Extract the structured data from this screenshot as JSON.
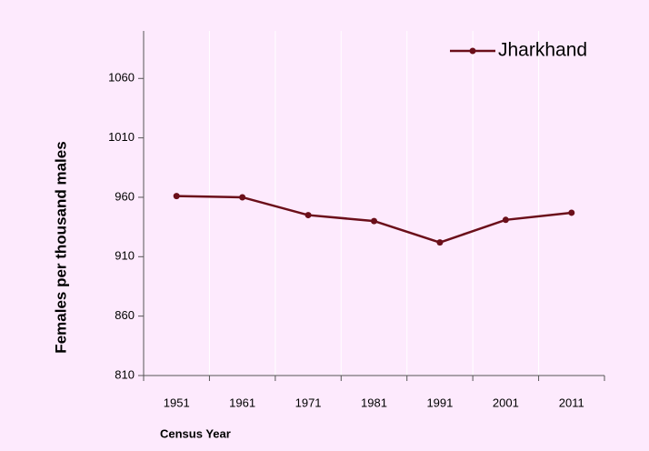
{
  "chart_data": {
    "type": "line",
    "xlabel": "Census Year",
    "ylabel": "Females per thousand  males",
    "categories": [
      "1951",
      "1961",
      "1971",
      "1981",
      "1991",
      "2001",
      "2011"
    ],
    "series": [
      {
        "name": "Jharkhand",
        "color": "#6b0f1a",
        "values": [
          961,
          960,
          945,
          940,
          922,
          941,
          947
        ]
      }
    ],
    "ylim": [
      810,
      1100
    ],
    "yticks": [
      810,
      860,
      910,
      960,
      1010,
      1060
    ],
    "grid": true,
    "legend": "upper right"
  }
}
